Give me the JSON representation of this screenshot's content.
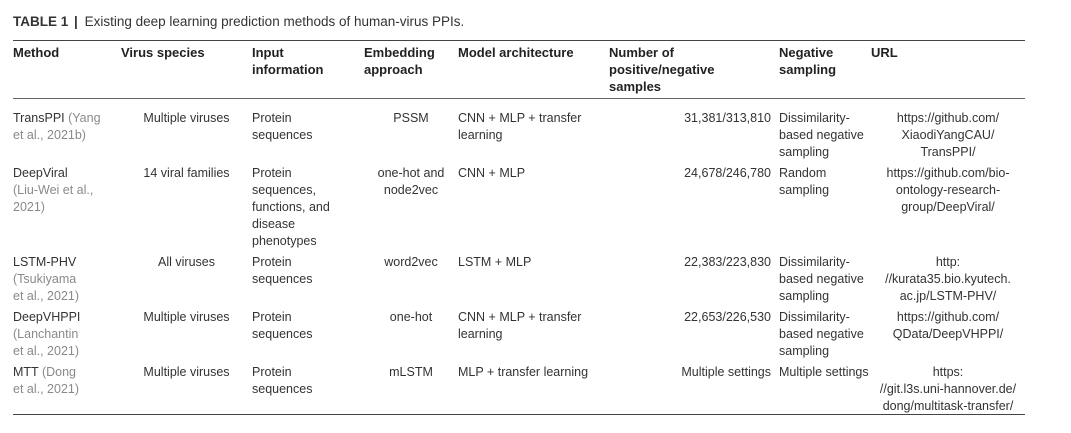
{
  "caption": {
    "label": "TABLE 1",
    "separator": "|",
    "text": "Existing deep learning prediction methods of human-virus PPIs."
  },
  "headers": {
    "method": "Method",
    "virus": "Virus species",
    "input": "Input\ninformation",
    "embedding": "Embedding\napproach",
    "model": "Model architecture",
    "number": "Number of\npositive/negative\nsamples",
    "negative": "Negative\nsampling",
    "url": "URL"
  },
  "rows": [
    {
      "name": "TransPPI",
      "cite": " (Yang\net al., 2021b)",
      "virus": "Multiple viruses",
      "input": "Protein\nsequences",
      "embedding": "PSSM",
      "model": "CNN + MLP + transfer\nlearning",
      "number": "31,381/313,810",
      "negative": "Dissimilarity-\nbased negative\nsampling",
      "url": "https://github.com/\nXiaodiYangCAU/\nTransPPI/"
    },
    {
      "name": "DeepViral",
      "cite": "\n(Liu-Wei et al.,\n2021)",
      "virus": "14 viral families",
      "input": "Protein\nsequences,\nfunctions, and\ndisease\nphenotypes",
      "embedding": "one-hot and\nnode2vec",
      "model": "CNN + MLP",
      "number": "24,678/246,780",
      "negative": "Random\nsampling",
      "url": "https://github.com/bio-\nontology-research-\ngroup/DeepViral/"
    },
    {
      "name": "LSTM-PHV",
      "cite": "\n(Tsukiyama\net al., 2021)",
      "virus": "All viruses",
      "input": "Protein\nsequences",
      "embedding": "word2vec",
      "model": "LSTM + MLP",
      "number": "22,383/223,830",
      "negative": "Dissimilarity-\nbased negative\nsampling",
      "url": "http:\n//kurata35.bio.kyutech.\nac.jp/LSTM-PHV/"
    },
    {
      "name": "DeepVHPPI",
      "cite": "\n(Lanchantin\net al., 2021)",
      "virus": "Multiple viruses",
      "input": "Protein\nsequences",
      "embedding": "one-hot",
      "model": "CNN + MLP + transfer\nlearning",
      "number": "22,653/226,530",
      "negative": "Dissimilarity-\nbased negative\nsampling",
      "url": "https://github.com/\nQData/DeepVHPPI/"
    },
    {
      "name": "MTT",
      "cite": " (Dong\net al., 2021)",
      "virus": "Multiple viruses",
      "input": "Protein\nsequences",
      "embedding": "mLSTM",
      "model": "MLP + transfer learning",
      "number": "Multiple settings",
      "negative": "Multiple settings",
      "url": "https:\n//git.l3s.uni-hannover.de/\ndong/multitask-transfer/"
    }
  ]
}
